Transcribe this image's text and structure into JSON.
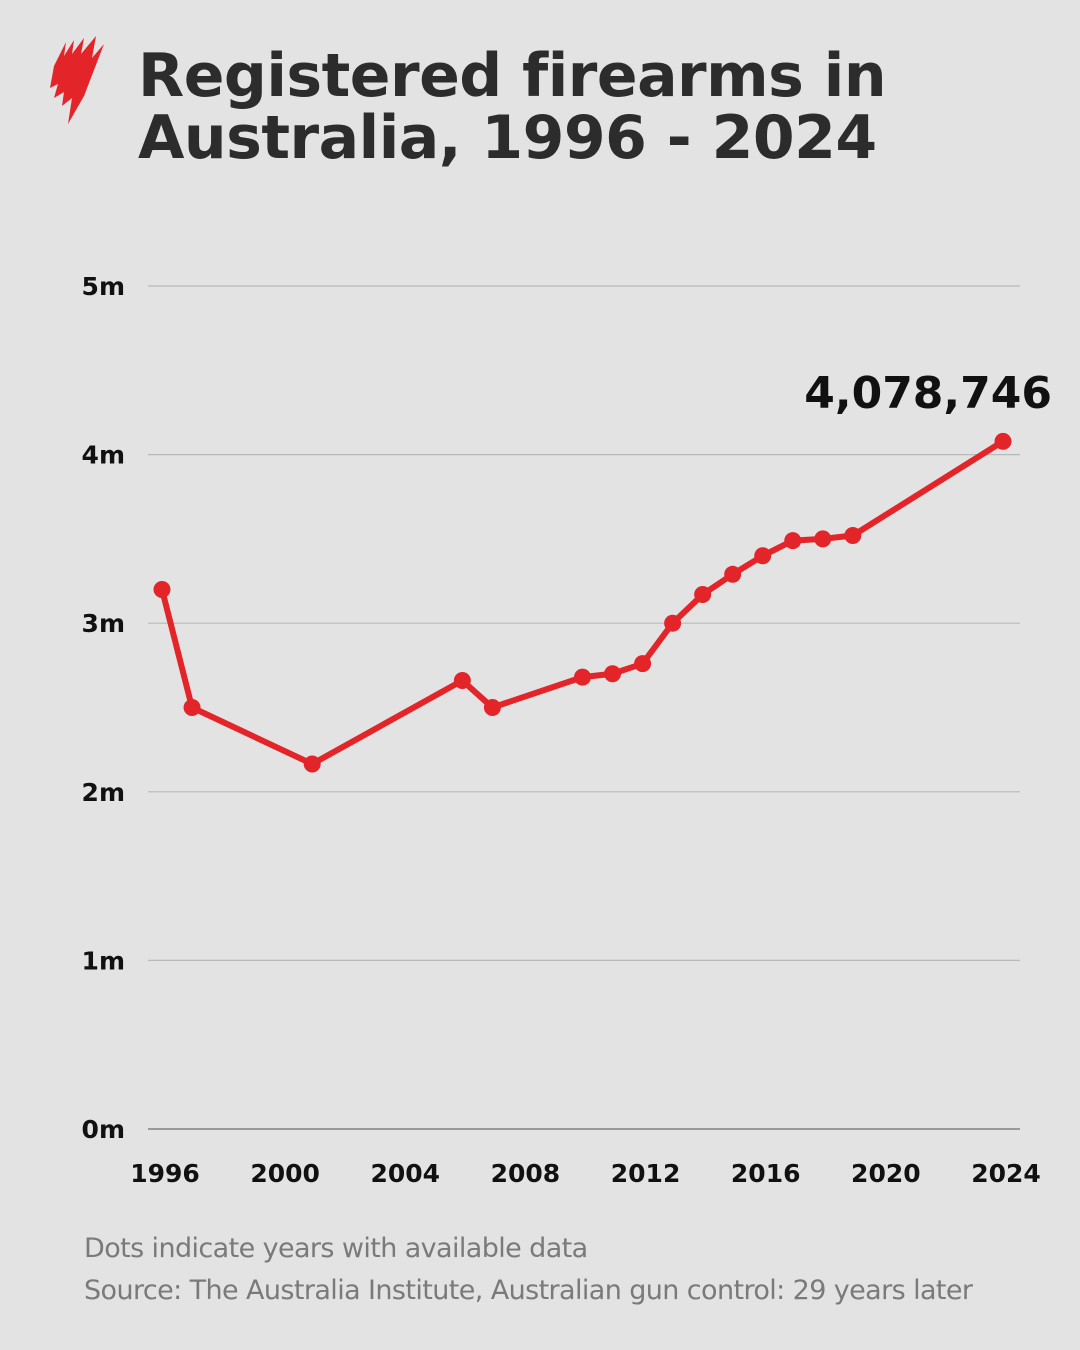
{
  "header": {
    "title_line1": "Registered firearms in",
    "title_line2": "Australia, 1996 - 2024",
    "logo": "sbs-flame-logo-icon",
    "logo_color": "#e32428"
  },
  "annotation": {
    "label": "4,078,746"
  },
  "footer": {
    "note": "Dots indicate years with available data",
    "source": "Source: The Australia Institute, Australian gun control: 29 years later"
  },
  "colors": {
    "line": "#e32428",
    "background": "#e3e3e3",
    "grid": "#b9b9b9",
    "text": "#111111"
  },
  "chart_data": {
    "type": "line",
    "title": "Registered firearms in Australia, 1996 - 2024",
    "xlabel": "",
    "ylabel": "",
    "x_ticks": [
      "1996",
      "2000",
      "2004",
      "2008",
      "2012",
      "2016",
      "2020",
      "2024"
    ],
    "y_ticks": [
      "0m",
      "1m",
      "2m",
      "3m",
      "4m",
      "5m"
    ],
    "ylim": [
      0,
      5000000
    ],
    "xlim": [
      1996,
      2024
    ],
    "grid": true,
    "legend": "none",
    "series": [
      {
        "name": "Registered firearms",
        "x": [
          1996,
          1997,
          2001,
          2006,
          2007,
          2010,
          2011,
          2012,
          2013,
          2014,
          2015,
          2016,
          2017,
          2018,
          2019,
          2024
        ],
        "values": [
          3200000,
          2500000,
          2165000,
          2660000,
          2500000,
          2680000,
          2700000,
          2760000,
          3000000,
          3170000,
          3290000,
          3400000,
          3490000,
          3500000,
          3520000,
          4078746
        ]
      }
    ],
    "annotations": [
      {
        "x": 2024,
        "y": 4078746,
        "text": "4,078,746"
      }
    ]
  }
}
